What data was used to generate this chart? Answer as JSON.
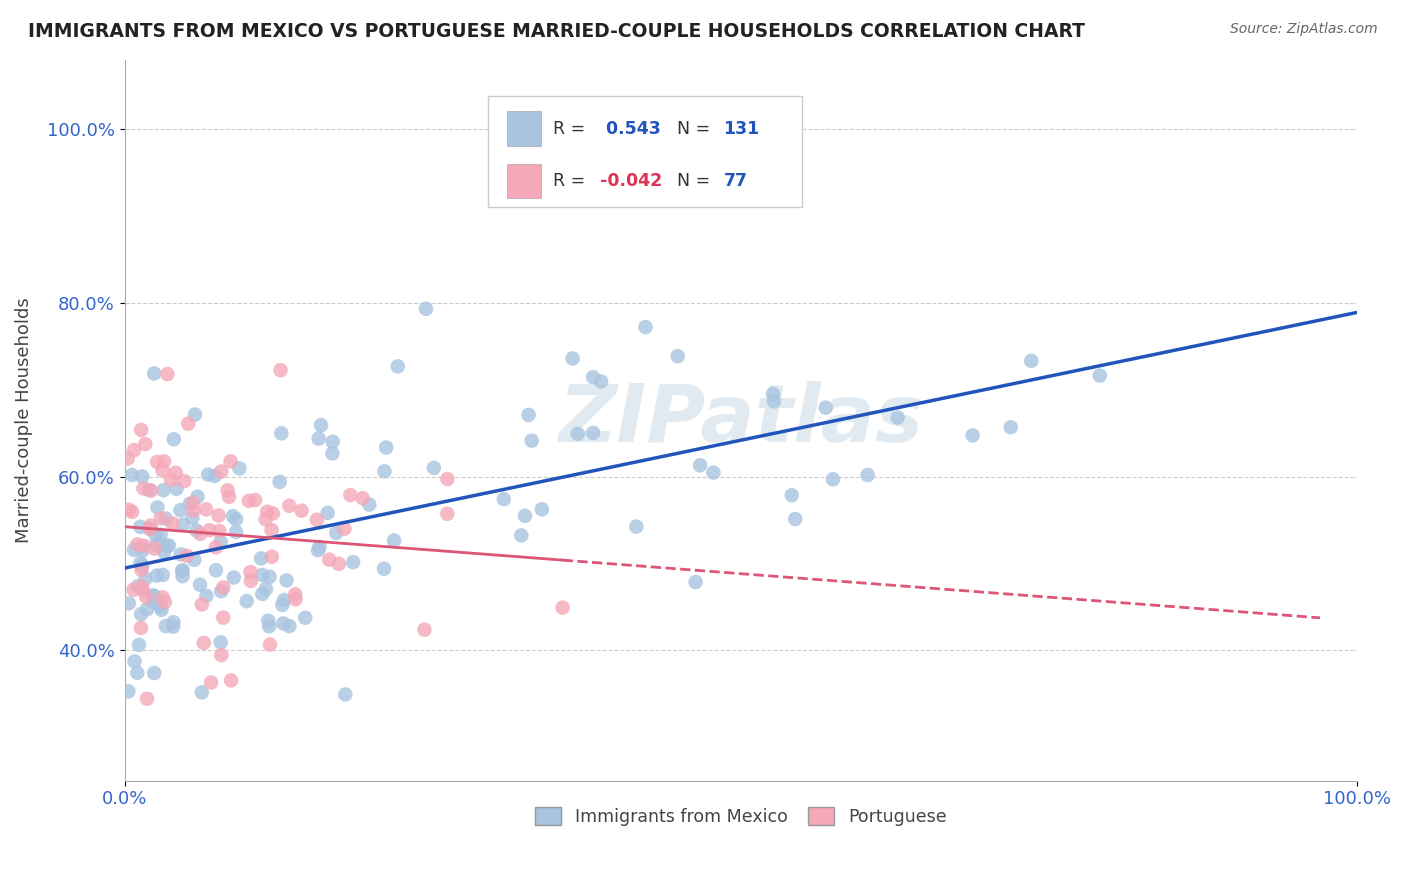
{
  "title": "IMMIGRANTS FROM MEXICO VS PORTUGUESE MARRIED-COUPLE HOUSEHOLDS CORRELATION CHART",
  "source_text": "Source: ZipAtlas.com",
  "ylabel": "Married-couple Households",
  "xlim": [
    0.0,
    1.0
  ],
  "ylim": [
    0.25,
    1.08
  ],
  "ytick_vals": [
    0.4,
    0.6,
    0.8,
    1.0
  ],
  "ytick_labels": [
    "40.0%",
    "60.0%",
    "80.0%",
    "100.0%"
  ],
  "xtick_labels": [
    "0.0%",
    "100.0%"
  ],
  "legend_labels": [
    "Immigrants from Mexico",
    "Portuguese"
  ],
  "r_blue": 0.543,
  "n_blue": 131,
  "r_pink": -0.042,
  "n_pink": 77,
  "blue_color": "#a8c4e0",
  "pink_color": "#f4a8b8",
  "line_blue": "#2255bb",
  "line_pink": "#dd5577",
  "watermark": "ZIPatlas",
  "bg_color": "#ffffff",
  "legend_neg_color": "#dd3355",
  "title_color": "#222222",
  "axis_color": "#3366cc",
  "ylabel_color": "#444444"
}
